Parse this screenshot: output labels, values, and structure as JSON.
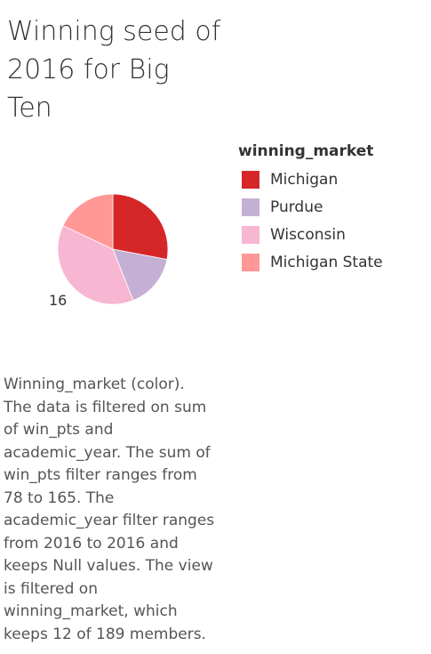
{
  "title_lines": [
    "Winning seed of",
    "2016 for Big",
    "Ten"
  ],
  "legend": {
    "title": "winning_market",
    "items": [
      {
        "label": "Michigan",
        "color": "#d62728"
      },
      {
        "label": "Purdue",
        "color": "#c5b0d5"
      },
      {
        "label": "Wisconsin",
        "color": "#f7b6d2"
      },
      {
        "label": "Michigan State",
        "color": "#ff9896"
      }
    ]
  },
  "caption_lines": [
    "Winning_market (color).",
    "The data is filtered on sum",
    "of win_pts and",
    "academic_year. The sum of",
    "win_pts filter ranges from",
    "78 to 165. The",
    "academic_year filter ranges",
    "from 2016 to 2016 and",
    "keeps Null values. The view",
    "is filtered on",
    "winning_market, which",
    "keeps 12 of 189 members."
  ],
  "chart_data": {
    "type": "pie",
    "title": "Winning seed of 2016 for Big Ten",
    "slices": [
      {
        "name": "Michigan",
        "value": 28,
        "color": "#d62728"
      },
      {
        "name": "Purdue",
        "value": 16,
        "color": "#c5b0d5"
      },
      {
        "name": "Wisconsin",
        "value": 38,
        "color": "#f7b6d2"
      },
      {
        "name": "Michigan State",
        "value": 18,
        "color": "#ff9896"
      }
    ],
    "annotation": "16",
    "legend_title": "winning_market",
    "legend_position": "right"
  }
}
